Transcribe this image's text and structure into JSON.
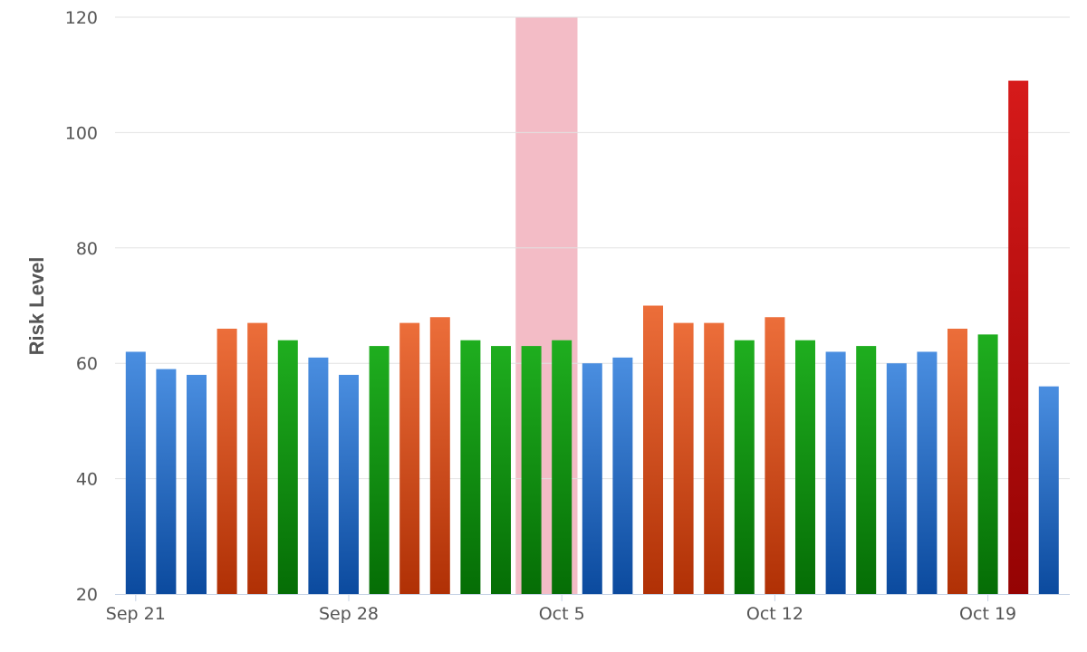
{
  "chart_data": {
    "type": "bar",
    "title": "",
    "xlabel": "",
    "ylabel": "Risk Level",
    "ylim": [
      20,
      120
    ],
    "yticks": [
      20,
      40,
      60,
      80,
      100,
      120
    ],
    "grid": true,
    "legend": "none",
    "x_tick_labels": [
      "Sep 21",
      "Sep 28",
      "Oct 5",
      "Oct 12",
      "Oct 19"
    ],
    "x_tick_label_dates": [
      "Sep 21",
      "Sep 28",
      "Oct 5",
      "Oct 12",
      "Oct 19"
    ],
    "dates": [
      "Sep 21",
      "Sep 22",
      "Sep 23",
      "Sep 24",
      "Sep 25",
      "Sep 26",
      "Sep 27",
      "Sep 28",
      "Sep 29",
      "Sep 30",
      "Oct 1",
      "Oct 2",
      "Oct 3",
      "Oct 4",
      "Oct 5",
      "Oct 6",
      "Oct 7",
      "Oct 8",
      "Oct 9",
      "Oct 10",
      "Oct 11",
      "Oct 12",
      "Oct 13",
      "Oct 14",
      "Oct 15",
      "Oct 16",
      "Oct 17",
      "Oct 18",
      "Oct 19",
      "Oct 20",
      "Oct 21"
    ],
    "values": [
      62,
      59,
      58,
      66,
      67,
      64,
      61,
      58,
      63,
      67,
      68,
      64,
      63,
      63,
      64,
      60,
      61,
      70,
      67,
      67,
      64,
      68,
      64,
      62,
      63,
      60,
      62,
      66,
      65,
      109,
      56
    ],
    "bar_colors": [
      "blue",
      "blue",
      "blue",
      "orange",
      "orange",
      "green",
      "blue",
      "blue",
      "green",
      "orange",
      "orange",
      "green",
      "green",
      "green",
      "green",
      "blue",
      "blue",
      "orange",
      "orange",
      "orange",
      "green",
      "orange",
      "green",
      "blue",
      "green",
      "blue",
      "blue",
      "orange",
      "green",
      "red",
      "blue"
    ],
    "highlight_band": {
      "from": "Oct 4",
      "to": "Oct 5",
      "color": "#f2b8c3"
    },
    "colors": {
      "blue": {
        "top": "#4a8ee0",
        "bottom": "#0b4a9e"
      },
      "orange": {
        "top": "#ec6e3a",
        "bottom": "#b03005"
      },
      "green": {
        "top": "#1fae1f",
        "bottom": "#056d05"
      },
      "red": {
        "top": "#d61a1a",
        "bottom": "#950303"
      },
      "grid": "#e2e2e2",
      "axis": "#c8d4e6",
      "text": "#555555"
    }
  }
}
